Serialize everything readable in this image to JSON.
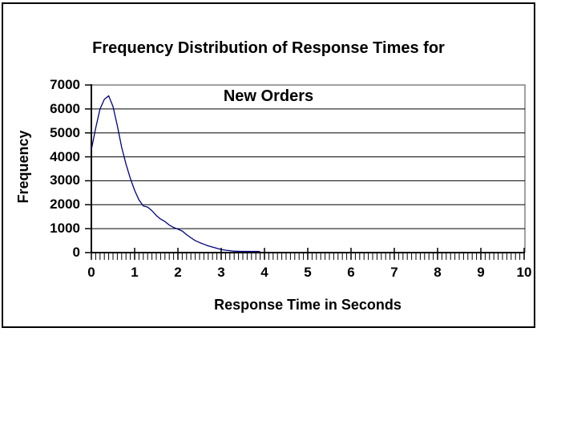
{
  "header": {
    "line1": "Frequency Distribution of Response Times for",
    "line2": "New Orders"
  },
  "colors": {
    "line": "#000080",
    "grid": "#000000",
    "axis": "#000000",
    "plot_border": "#808080",
    "frame_border": "#000000",
    "background": "#ffffff",
    "text": "#000000"
  },
  "chart_data": {
    "type": "line",
    "title": "Frequency Distribution of Response Times for New Orders",
    "xlabel": "Response Time in Seconds",
    "ylabel": "Frequency",
    "xlim": [
      0,
      10
    ],
    "ylim": [
      0,
      7000
    ],
    "x_ticks": [
      0,
      1,
      2,
      3,
      4,
      5,
      6,
      7,
      8,
      9,
      10
    ],
    "y_ticks": [
      0,
      1000,
      2000,
      3000,
      4000,
      5000,
      6000,
      7000
    ],
    "x_minor_tick_step": 0.1,
    "grid": "horizontal-major",
    "legend": "none",
    "series": [
      {
        "name": "Frequency",
        "x": [
          0.0,
          0.1,
          0.2,
          0.3,
          0.4,
          0.5,
          0.6,
          0.7,
          0.8,
          0.9,
          1.0,
          1.1,
          1.2,
          1.3,
          1.4,
          1.5,
          1.6,
          1.7,
          1.8,
          1.9,
          2.0,
          2.1,
          2.2,
          2.3,
          2.4,
          2.5,
          2.6,
          2.7,
          2.8,
          2.9,
          3.0,
          3.1,
          3.2,
          3.3,
          3.4,
          3.5,
          3.6,
          3.7,
          3.8,
          3.9
        ],
        "y": [
          4300,
          5200,
          6000,
          6400,
          6550,
          6100,
          5300,
          4400,
          3700,
          3100,
          2600,
          2200,
          1950,
          1900,
          1750,
          1550,
          1400,
          1300,
          1150,
          1050,
          980,
          900,
          750,
          620,
          500,
          420,
          350,
          280,
          230,
          180,
          130,
          100,
          80,
          60,
          55,
          50,
          50,
          50,
          50,
          45
        ]
      }
    ]
  }
}
